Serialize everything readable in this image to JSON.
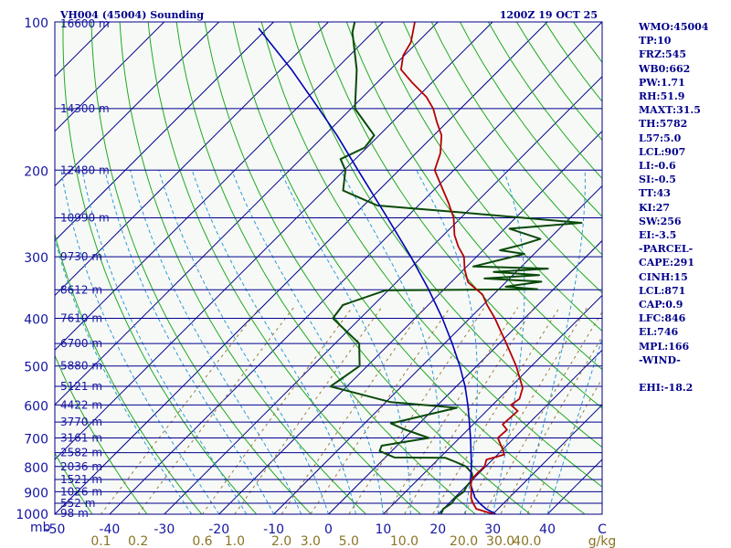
{
  "header": {
    "station": "VH004 (45004) Sounding",
    "time": "1200Z 19 OCT 25"
  },
  "colors": {
    "background": "#ffffff",
    "plot_background": "#f7f9f7",
    "isobar": "#00008b",
    "isotherm": "#00008b",
    "dry_adiabat": "#1faa1f",
    "moist_adiabat": "#2b9bd6",
    "mixing_ratio": "#9a7a3a",
    "temperature": "#b40000",
    "dewpoint": "#0a4a0a",
    "parcel": "#0000b4",
    "axis_text": "#1414a0",
    "mixing_ratio_text": "#8a7424",
    "info_text": "#00008b"
  },
  "chart_data": {
    "type": "skew-t log-p sounding",
    "pressure_range": [
      1000,
      100
    ],
    "temperature_range": [
      -50,
      50
    ],
    "pressure_levels": [
      100,
      200,
      300,
      400,
      500,
      600,
      700,
      800,
      900,
      1000
    ],
    "pressure_unit": "mb",
    "temperature_ticks": [
      "-50",
      "-40",
      "-30",
      "-20",
      "-10",
      "0",
      "10",
      "20",
      "30",
      "40",
      "C"
    ],
    "mixing_ratio_labels": [
      "0.1",
      "0.2",
      "0.6",
      "1.0",
      "2.0",
      "3.0",
      "5.0",
      "10.0",
      "20.0",
      "30.0",
      "40.0",
      "g/kg"
    ],
    "height_labels": [
      {
        "p": 100,
        "label": "16600 m"
      },
      {
        "p": 150,
        "label": "14300 m"
      },
      {
        "p": 200,
        "label": "12480 m"
      },
      {
        "p": 250,
        "label": "10990 m"
      },
      {
        "p": 300,
        "label": "9730 m"
      },
      {
        "p": 350,
        "label": "8612 m"
      },
      {
        "p": 400,
        "label": "7610 m"
      },
      {
        "p": 450,
        "label": "6700 m"
      },
      {
        "p": 500,
        "label": "5880 m"
      },
      {
        "p": 550,
        "label": "5121 m"
      },
      {
        "p": 600,
        "label": "4422 m"
      },
      {
        "p": 650,
        "label": "3770 m"
      },
      {
        "p": 700,
        "label": "3161 m"
      },
      {
        "p": 750,
        "label": "2582 m"
      },
      {
        "p": 800,
        "label": "2036 m"
      },
      {
        "p": 850,
        "label": "1521 m"
      },
      {
        "p": 900,
        "label": "1026 m"
      },
      {
        "p": 950,
        "label": "552 m"
      },
      {
        "p": 1000,
        "label": "98 m"
      }
    ],
    "series": [
      {
        "key": "temperature",
        "points": [
          [
            1004,
            31.0
          ],
          [
            990,
            28.5
          ],
          [
            975,
            26.0
          ],
          [
            950,
            24.4
          ],
          [
            925,
            23.0
          ],
          [
            900,
            22.0
          ],
          [
            875,
            20.8
          ],
          [
            850,
            19.8
          ],
          [
            825,
            19.7
          ],
          [
            800,
            19.8
          ],
          [
            775,
            18.9
          ],
          [
            757,
            21.2
          ],
          [
            744,
            20.4
          ],
          [
            700,
            17.0
          ],
          [
            674,
            17.2
          ],
          [
            657,
            15.4
          ],
          [
            617,
            15.7
          ],
          [
            600,
            13.4
          ],
          [
            583,
            13.8
          ],
          [
            554,
            12.4
          ],
          [
            500,
            7.2
          ],
          [
            450,
            1.3
          ],
          [
            400,
            -5.4
          ],
          [
            375,
            -9.4
          ],
          [
            358,
            -12.0
          ],
          [
            350,
            -13.9
          ],
          [
            338,
            -16.9
          ],
          [
            318,
            -19.9
          ],
          [
            300,
            -22.3
          ],
          [
            286,
            -25.2
          ],
          [
            271,
            -28.0
          ],
          [
            250,
            -31.3
          ],
          [
            233,
            -35.0
          ],
          [
            220,
            -38.2
          ],
          [
            200,
            -43.5
          ],
          [
            185,
            -45.5
          ],
          [
            170,
            -48.6
          ],
          [
            160,
            -51.8
          ],
          [
            150,
            -55.0
          ],
          [
            142,
            -58.4
          ],
          [
            133,
            -63.5
          ],
          [
            125,
            -68.0
          ],
          [
            117,
            -70.2
          ],
          [
            110,
            -71.2
          ],
          [
            100,
            -74.2
          ]
        ]
      },
      {
        "key": "dewpoint",
        "points": [
          [
            1004,
            20.6
          ],
          [
            975,
            20.0
          ],
          [
            950,
            20.5
          ],
          [
            925,
            20.2
          ],
          [
            900,
            20.6
          ],
          [
            875,
            20.1
          ],
          [
            850,
            20.0
          ],
          [
            825,
            18.7
          ],
          [
            800,
            16.4
          ],
          [
            784,
            13.8
          ],
          [
            768,
            11.0
          ],
          [
            767,
            1.7
          ],
          [
            744,
            -2.2
          ],
          [
            726,
            -2.8
          ],
          [
            700,
            4.4
          ],
          [
            672,
            -1.7
          ],
          [
            654,
            -5.2
          ],
          [
            608,
            4.0
          ],
          [
            592,
            -9.1
          ],
          [
            550,
            -23.0
          ],
          [
            500,
            -21.4
          ],
          [
            450,
            -25.6
          ],
          [
            400,
            -35.0
          ],
          [
            376,
            -35.6
          ],
          [
            351,
            -30.5
          ],
          [
            349,
            -3.0
          ],
          [
            345,
            -9.2
          ],
          [
            337,
            -3.6
          ],
          [
            332,
            -14.6
          ],
          [
            327,
            -5.2
          ],
          [
            322,
            -14.1
          ],
          [
            317,
            -4.8
          ],
          [
            314,
            -18.8
          ],
          [
            296,
            -11.8
          ],
          [
            291,
            -16.9
          ],
          [
            284,
            -14.1
          ],
          [
            276,
            -11.6
          ],
          [
            263,
            -19.1
          ],
          [
            256,
            -7.0
          ],
          [
            244,
            -30.5
          ],
          [
            236,
            -47.5
          ],
          [
            220,
            -56.5
          ],
          [
            200,
            -59.8
          ],
          [
            190,
            -62.7
          ],
          [
            180,
            -60.4
          ],
          [
            170,
            -60.9
          ],
          [
            150,
            -69.3
          ],
          [
            125,
            -76.1
          ],
          [
            105,
            -83.7
          ],
          [
            100,
            -85.2
          ]
        ]
      },
      {
        "key": "parcel",
        "points": [
          [
            1004,
            31.0
          ],
          [
            975,
            27.8
          ],
          [
            950,
            25.6
          ],
          [
            925,
            23.7
          ],
          [
            900,
            22.3
          ],
          [
            871,
            20.6
          ],
          [
            850,
            19.6
          ],
          [
            800,
            17.4
          ],
          [
            750,
            14.8
          ],
          [
            700,
            12.0
          ],
          [
            650,
            8.9
          ],
          [
            600,
            5.5
          ],
          [
            550,
            1.6
          ],
          [
            500,
            -3.1
          ],
          [
            450,
            -8.6
          ],
          [
            400,
            -15.0
          ],
          [
            350,
            -22.7
          ],
          [
            300,
            -32.0
          ],
          [
            250,
            -43.4
          ],
          [
            200,
            -57.5
          ],
          [
            170,
            -67.7
          ],
          [
            150,
            -75.9
          ],
          [
            125,
            -88.0
          ],
          [
            103,
            -101.6
          ]
        ]
      }
    ]
  },
  "indices": [
    "WMO:45004",
    "TP:10",
    "FRZ:545",
    "WB0:662",
    "PW:1.71",
    "RH:51.9",
    "MAXT:31.5",
    "TH:5782",
    "L57:5.0",
    "LCL:907",
    "LI:-0.6",
    "SI:-0.5",
    "TT:43",
    "KI:27",
    "SW:256",
    "EI:-3.5",
    "-PARCEL-",
    "CAPE:291",
    "CINH:15",
    "LCL:871",
    "CAP:0.9",
    "LFC:846",
    "EL:746",
    "MPL:166",
    "-WIND-",
    "",
    "EHI:-18.2"
  ]
}
